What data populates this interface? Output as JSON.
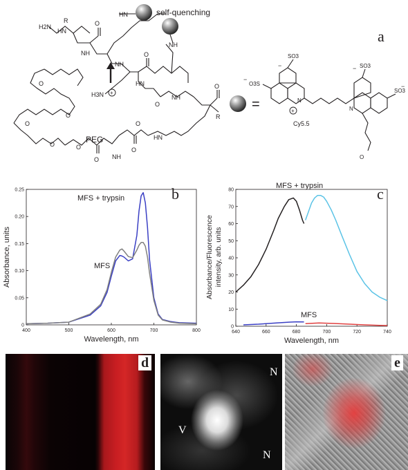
{
  "panel_a": {
    "letter": "a",
    "self_quenching_label": "self-quenching",
    "peg_label": "PEG",
    "dye_name": "Cy5.5",
    "chem_atoms": {
      "nh": "NH",
      "hn": "HN",
      "n": "N",
      "r": "R",
      "h2n": "H2N",
      "h3n": "H3N",
      "o": "O",
      "so3": "SO3",
      "o3s": "O3S",
      "plus": "+",
      "minus": "−"
    },
    "equals_sign": "="
  },
  "chart_data": [
    {
      "panel": "b",
      "type": "line",
      "xlabel": "Wavelength, nm",
      "ylabel": "Absorbance, units",
      "xlim": [
        400,
        800
      ],
      "ylim": [
        0,
        0.25
      ],
      "x_ticks": [
        "400",
        "500",
        "600",
        "700",
        "800"
      ],
      "y_ticks": [
        "0",
        "0.05",
        "0.10",
        "0.15",
        "0.20",
        "0.25"
      ],
      "annotations": [
        "MFS + trypsin",
        "MFS"
      ],
      "series": [
        {
          "color": "#3a3fc4",
          "x": [
            400,
            450,
            500,
            550,
            575,
            590,
            600,
            610,
            620,
            625,
            630,
            640,
            650,
            660,
            665,
            670,
            675,
            680,
            685,
            690,
            700,
            710,
            720,
            740,
            760,
            800
          ],
          "values": [
            0.002,
            0.003,
            0.005,
            0.018,
            0.035,
            0.06,
            0.09,
            0.118,
            0.128,
            0.127,
            0.125,
            0.118,
            0.122,
            0.165,
            0.21,
            0.238,
            0.244,
            0.225,
            0.18,
            0.12,
            0.05,
            0.02,
            0.01,
            0.006,
            0.004,
            0.003
          ]
        },
        {
          "color": "#808080",
          "x": [
            400,
            450,
            500,
            550,
            575,
            590,
            600,
            610,
            620,
            625,
            630,
            640,
            650,
            660,
            665,
            670,
            675,
            680,
            685,
            690,
            700,
            710,
            720,
            740,
            760,
            800
          ],
          "values": [
            0.002,
            0.003,
            0.005,
            0.02,
            0.038,
            0.065,
            0.097,
            0.125,
            0.138,
            0.14,
            0.136,
            0.126,
            0.124,
            0.138,
            0.147,
            0.152,
            0.152,
            0.145,
            0.125,
            0.095,
            0.045,
            0.018,
            0.009,
            0.005,
            0.003,
            0.002
          ]
        }
      ]
    },
    {
      "panel": "c",
      "type": "line",
      "xlabel": "Wavelength, nm",
      "ylabel": "Absorbance/Fluorescence intensity, arb. units",
      "xlim": [
        640,
        740
      ],
      "ylim": [
        0,
        80
      ],
      "x_ticks": [
        "640",
        "660",
        "680",
        "700",
        "720",
        "740"
      ],
      "y_ticks": [
        "0",
        "10",
        "20",
        "30",
        "40",
        "50",
        "60",
        "70",
        "80"
      ],
      "annotations": [
        "MFS + trypsin",
        "MFS"
      ],
      "series": [
        {
          "color": "#231f20",
          "x": [
            640,
            645,
            650,
            655,
            660,
            665,
            668,
            672,
            675,
            678,
            680,
            682,
            684,
            685
          ],
          "values": [
            20,
            24,
            29,
            36,
            45,
            56,
            63,
            70,
            74,
            75,
            73,
            68,
            62,
            60
          ]
        },
        {
          "color": "#5bc3e6",
          "x": [
            686,
            688,
            690,
            692,
            694,
            696,
            698,
            700,
            703,
            706,
            710,
            715,
            720,
            725,
            730,
            735,
            740
          ],
          "values": [
            62,
            67,
            72,
            75,
            76.5,
            76.5,
            75.5,
            73,
            68,
            62,
            53,
            42,
            32,
            25,
            20,
            17,
            15
          ]
        },
        {
          "color": "#3a3fc4",
          "x": [
            645,
            655,
            665,
            675,
            680,
            685
          ],
          "values": [
            0.8,
            1.2,
            1.8,
            2.4,
            2.6,
            2.5
          ]
        },
        {
          "color": "#e04040",
          "x": [
            686,
            695,
            705,
            715,
            725,
            735,
            740
          ],
          "values": [
            1.5,
            1.9,
            1.6,
            1.2,
            0.8,
            0.5,
            0.4
          ]
        }
      ]
    }
  ],
  "panel_d": {
    "letter": "d"
  },
  "panel_e": {
    "letter": "e"
  },
  "micro_labels": {
    "n1": "N",
    "n2": "N",
    "v": "V"
  },
  "panel_b_letter": "b",
  "panel_c_letter": "c"
}
